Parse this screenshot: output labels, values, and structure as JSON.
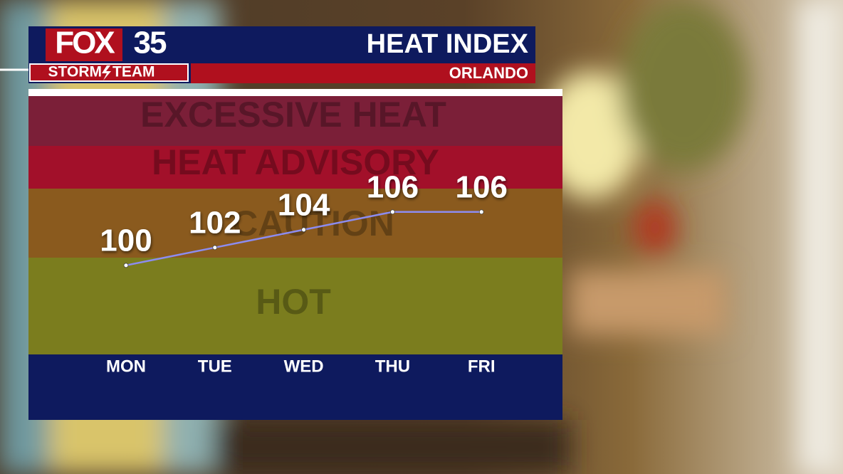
{
  "header": {
    "brand": "FOX",
    "channel": "35",
    "team": [
      "STORM",
      "TEAM"
    ]
  },
  "chart_data": {
    "type": "line",
    "title": "HEAT INDEX",
    "subtitle": "ORLANDO",
    "categories": [
      "MON",
      "TUE",
      "WED",
      "THU",
      "FRI"
    ],
    "values": [
      100,
      102,
      104,
      106,
      106
    ],
    "color": "#8c8cf0",
    "ylim": [
      90,
      119
    ],
    "bands": [
      {
        "label": "EXCESSIVE HEAT",
        "color": "#7b1f38"
      },
      {
        "label": "HEAT ADVISORY",
        "color": "#a2102a"
      },
      {
        "label": "CAUTION",
        "color": "#8a5a1e"
      },
      {
        "label": "HOT",
        "color": "#7b7d1e"
      }
    ]
  }
}
